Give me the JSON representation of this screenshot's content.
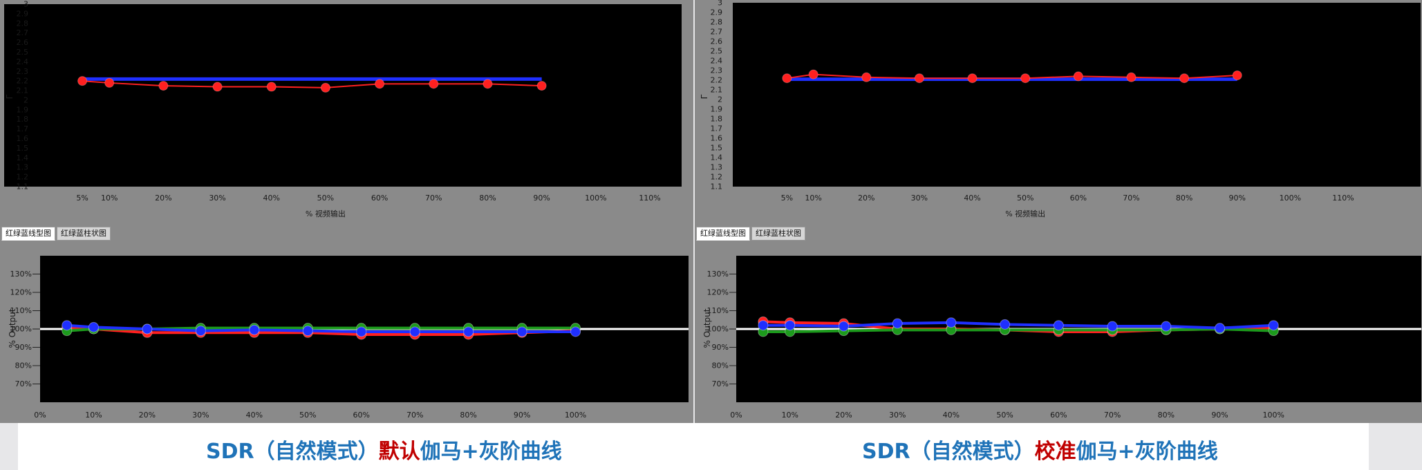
{
  "panels": [
    {
      "tabs": [
        {
          "label": "红绿蓝线型图",
          "active": true
        },
        {
          "label": "红绿蓝柱状图",
          "active": false
        }
      ],
      "caption": {
        "prefix": "SDR（自然模式）",
        "accent": "默认",
        "suffix": "伽马+灰阶曲线"
      }
    },
    {
      "tabs": [
        {
          "label": "红绿蓝线型图",
          "active": true
        },
        {
          "label": "红绿蓝柱状图",
          "active": false
        }
      ],
      "caption": {
        "prefix": "SDR（自然模式）",
        "accent": "校准",
        "suffix": "伽马+灰阶曲线"
      }
    }
  ],
  "colors": {
    "red": "#ff2020",
    "green": "#1c9a1c",
    "blue": "#1f2fff",
    "reference": "#ffffff",
    "plot_bg": "#000000",
    "frame_bg": "#8a8a8a"
  },
  "chart_data": [
    {
      "type": "line",
      "panel": "left-top",
      "ylabel": "Γ",
      "xlabel": "% 视频输出",
      "ylim": [
        1.1,
        3.0
      ],
      "yticks": [
        "3",
        "2.9",
        "2.8",
        "2.7",
        "2.6",
        "2.5",
        "2.4",
        "2.3",
        "2.2",
        "2.1",
        "2",
        "1.9",
        "1.8",
        "1.7",
        "1.6",
        "1.5",
        "1.4",
        "1.3",
        "1.2",
        "1.1"
      ],
      "xlim": [
        0,
        110
      ],
      "xticks": [
        "5%",
        "10%",
        "20%",
        "30%",
        "40%",
        "50%",
        "60%",
        "70%",
        "80%",
        "90%",
        "100%",
        "110%"
      ],
      "x": [
        5,
        10,
        20,
        30,
        40,
        50,
        60,
        70,
        80,
        90
      ],
      "series": [
        {
          "color": "blue",
          "values": [
            2.22,
            2.22,
            2.22,
            2.22,
            2.22,
            2.22,
            2.22,
            2.22,
            2.22,
            2.22
          ],
          "markers": false
        },
        {
          "color": "red",
          "values": [
            2.2,
            2.18,
            2.15,
            2.14,
            2.14,
            2.13,
            2.17,
            2.17,
            2.17,
            2.15
          ],
          "markers": true
        }
      ]
    },
    {
      "type": "line",
      "panel": "right-top",
      "ylabel": "Γ",
      "xlabel": "% 视频输出",
      "ylim": [
        1.1,
        3.0
      ],
      "yticks": [
        "3",
        "2.9",
        "2.8",
        "2.7",
        "2.6",
        "2.5",
        "2.4",
        "2.3",
        "2.2",
        "2.1",
        "2",
        "1.9",
        "1.8",
        "1.7",
        "1.6",
        "1.5",
        "1.4",
        "1.3",
        "1.2",
        "1.1"
      ],
      "xlim": [
        0,
        110
      ],
      "xticks": [
        "5%",
        "10%",
        "20%",
        "30%",
        "40%",
        "50%",
        "60%",
        "70%",
        "80%",
        "90%",
        "100%",
        "110%"
      ],
      "x": [
        5,
        10,
        20,
        30,
        40,
        50,
        60,
        70,
        80,
        90
      ],
      "series": [
        {
          "color": "blue",
          "values": [
            2.21,
            2.21,
            2.21,
            2.21,
            2.21,
            2.21,
            2.21,
            2.21,
            2.21,
            2.21
          ],
          "markers": false
        },
        {
          "color": "red",
          "values": [
            2.22,
            2.26,
            2.23,
            2.22,
            2.22,
            2.22,
            2.24,
            2.23,
            2.22,
            2.25
          ],
          "markers": true
        }
      ]
    },
    {
      "type": "line",
      "panel": "left-bottom",
      "ylabel": "% Output",
      "ylim": [
        60,
        140
      ],
      "yticks": [
        "130%",
        "120%",
        "110%",
        "100%",
        "90%",
        "80%",
        "70%"
      ],
      "xlim": [
        0,
        110
      ],
      "xticks": [
        "0%",
        "10%",
        "20%",
        "30%",
        "40%",
        "50%",
        "60%",
        "70%",
        "80%",
        "90%",
        "100%"
      ],
      "reference": 100,
      "x": [
        5,
        10,
        20,
        30,
        40,
        50,
        60,
        70,
        80,
        90,
        100
      ],
      "series": [
        {
          "color": "red",
          "values": [
            101,
            100,
            98,
            98,
            98,
            98,
            97,
            97,
            97,
            98,
            99
          ]
        },
        {
          "color": "green",
          "values": [
            99,
            100,
            100,
            100.5,
            100.5,
            100.5,
            100.5,
            100.5,
            100.5,
            100.5,
            100.5
          ]
        },
        {
          "color": "blue",
          "values": [
            102,
            101,
            100,
            99,
            99.5,
            99,
            98.5,
            98.5,
            98.5,
            98.5,
            98.5
          ]
        }
      ]
    },
    {
      "type": "line",
      "panel": "right-bottom",
      "ylabel": "% Output",
      "ylim": [
        60,
        140
      ],
      "yticks": [
        "130%",
        "120%",
        "110%",
        "100%",
        "90%",
        "80%",
        "70%"
      ],
      "xlim": [
        0,
        110
      ],
      "xticks": [
        "0%",
        "10%",
        "20%",
        "30%",
        "40%",
        "50%",
        "60%",
        "70%",
        "80%",
        "90%",
        "100%"
      ],
      "reference": 100,
      "x": [
        5,
        10,
        20,
        30,
        40,
        50,
        60,
        70,
        80,
        90,
        100
      ],
      "series": [
        {
          "color": "red",
          "values": [
            104,
            103.5,
            103,
            100,
            100,
            99.5,
            98.5,
            98.5,
            99.5,
            100,
            100.5
          ]
        },
        {
          "color": "green",
          "values": [
            98.5,
            98.5,
            99,
            99.5,
            99.5,
            99.5,
            99.5,
            99.5,
            99.5,
            100,
            99
          ]
        },
        {
          "color": "blue",
          "values": [
            102,
            102,
            101.5,
            103,
            103.5,
            102.5,
            102,
            101.5,
            101.5,
            100.5,
            102
          ]
        }
      ]
    }
  ]
}
